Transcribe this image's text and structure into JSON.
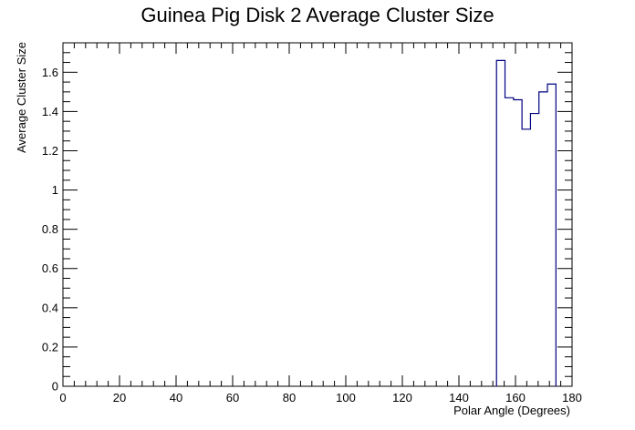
{
  "chart_data": {
    "type": "histogram-step",
    "title": "Guinea Pig Disk 2 Average Cluster Size",
    "xlabel": "Polar Angle (Degrees)",
    "ylabel": "Average Cluster Size",
    "xlim": [
      0,
      180
    ],
    "ylim": [
      0,
      1.75
    ],
    "x_ticks": [
      0,
      20,
      40,
      60,
      80,
      100,
      120,
      140,
      160,
      180
    ],
    "y_ticks": [
      0,
      0.2,
      0.4,
      0.6,
      0.8,
      1,
      1.2,
      1.4,
      1.6
    ],
    "bin_width": 3.0,
    "bins": [
      {
        "x_low": 153.3,
        "x_high": 156.3,
        "value": 1.66
      },
      {
        "x_low": 156.3,
        "x_high": 159.3,
        "value": 1.47
      },
      {
        "x_low": 159.3,
        "x_high": 162.3,
        "value": 1.46
      },
      {
        "x_low": 162.3,
        "x_high": 165.3,
        "value": 1.31
      },
      {
        "x_low": 165.3,
        "x_high": 168.3,
        "value": 1.39
      },
      {
        "x_low": 168.3,
        "x_high": 171.3,
        "value": 1.5
      },
      {
        "x_low": 171.3,
        "x_high": 174.3,
        "value": 1.54
      }
    ],
    "line_color": "#000080",
    "grid": false,
    "legend": "none"
  }
}
